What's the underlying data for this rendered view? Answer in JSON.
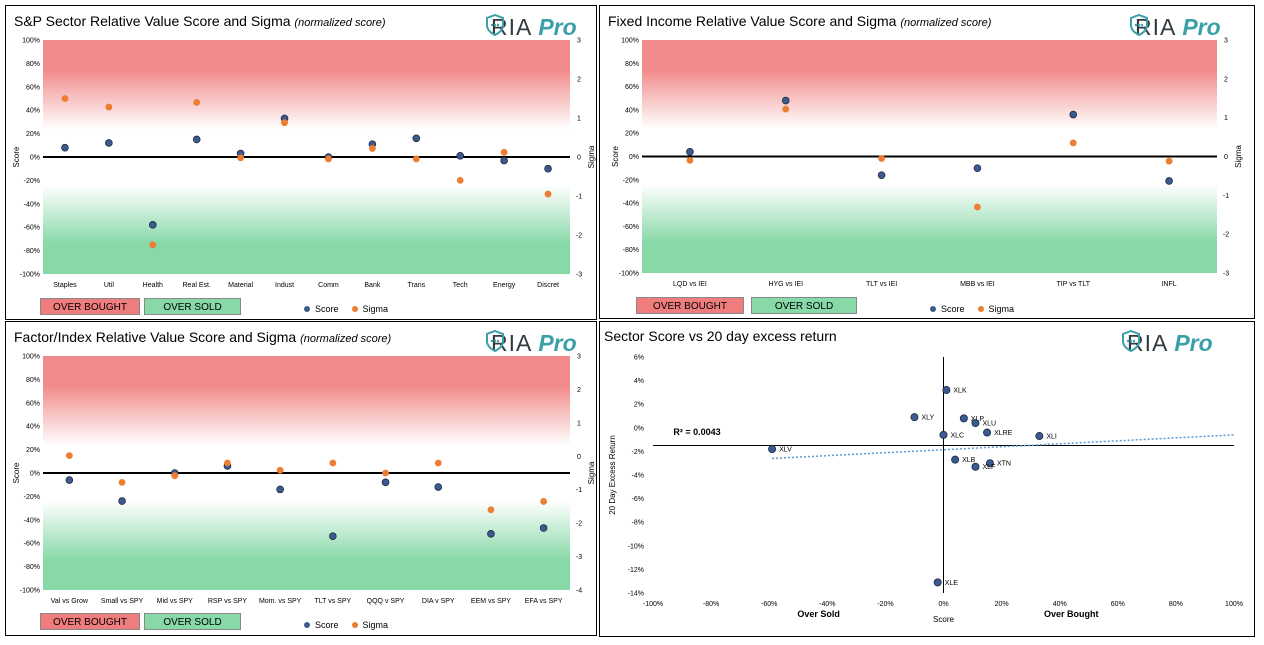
{
  "logo": {
    "ria": "RIA",
    "pro": "Pro"
  },
  "legend": {
    "over_bought": "OVER BOUGHT",
    "over_sold": "OVER SOLD",
    "score": "Score",
    "sigma": "Sigma"
  },
  "colors": {
    "score": "#3b5a8f",
    "sigma": "#ed7d31",
    "zone_red": "#f28b8b",
    "zone_green": "#88d9a8",
    "trend": "#5b9bd5"
  },
  "chart_data": [
    {
      "id": "sp",
      "type": "scatter",
      "title": "S&P Sector Relative Value Score and Sigma",
      "subtitle": "(normalized score)",
      "ylabel": "Score",
      "y2label": "Sigma",
      "ylim": [
        -100,
        100
      ],
      "y2lim": [
        -3,
        3
      ],
      "yticks": [
        "100%",
        "80%",
        "60%",
        "40%",
        "20%",
        "0%",
        "-20%",
        "-40%",
        "-60%",
        "-80%",
        "-100%"
      ],
      "y2ticks": [
        "3",
        "2",
        "1",
        "0",
        "-1",
        "-2",
        "-3"
      ],
      "categories": [
        "Staples",
        "Util",
        "Health",
        "Real Est.",
        "Material",
        "Indust",
        "Comm",
        "Bank",
        "Trans",
        "Tech",
        "Energy",
        "Discret"
      ],
      "series": [
        {
          "name": "Score",
          "values": [
            8,
            12,
            -58,
            15,
            3,
            33,
            0,
            11,
            16,
            1,
            -3,
            -10
          ]
        },
        {
          "name": "Sigma",
          "values": [
            1.5,
            1.28,
            -2.25,
            1.4,
            -0.02,
            0.88,
            -0.05,
            0.22,
            -0.05,
            -0.6,
            0.12,
            -0.95
          ]
        }
      ]
    },
    {
      "id": "fi",
      "type": "scatter",
      "title": "Fixed Income Relative Value Score and Sigma",
      "subtitle": "(normalized score)",
      "ylabel": "Score",
      "y2label": "Sigma",
      "ylim": [
        -100,
        100
      ],
      "y2lim": [
        -3,
        3
      ],
      "yticks": [
        "100%",
        "80%",
        "60%",
        "40%",
        "20%",
        "0%",
        "-20%",
        "-40%",
        "-60%",
        "-80%",
        "-100%"
      ],
      "y2ticks": [
        "3",
        "2",
        "1",
        "0",
        "-1",
        "-2",
        "-3"
      ],
      "categories": [
        "LQD vs IEI",
        "HYG vs IEI",
        "TLT vs IEI",
        "MBB vs IEI",
        "TIP vs TLT",
        "INFL"
      ],
      "series": [
        {
          "name": "Score",
          "values": [
            4,
            48,
            -16,
            -10,
            36,
            -21
          ]
        },
        {
          "name": "Sigma",
          "values": [
            -0.1,
            1.22,
            -0.05,
            -1.3,
            0.35,
            -0.12
          ]
        }
      ]
    },
    {
      "id": "fx",
      "type": "scatter",
      "title": "Factor/Index Relative Value Score and Sigma",
      "subtitle": "(normalized score)",
      "ylabel": "Score",
      "y2label": "Sigma",
      "ylim": [
        -100,
        100
      ],
      "y2lim": [
        -4,
        3
      ],
      "yticks": [
        "100%",
        "80%",
        "60%",
        "40%",
        "20%",
        "0%",
        "-20%",
        "-40%",
        "-60%",
        "-80%",
        "-100%"
      ],
      "y2ticks": [
        "3",
        "2",
        "1",
        "0",
        "-1",
        "-2",
        "-3",
        "-4"
      ],
      "categories": [
        "Val vs Grow",
        "Small vs SPY",
        "Mid vs SPY",
        "RSP vs SPY",
        "Mom. vs SPY",
        "TLT vs SPY",
        "QQQ v SPY",
        "DIA v SPY",
        "EEM vs SPY",
        "EFA vs SPY"
      ],
      "series": [
        {
          "name": "Score",
          "values": [
            -6,
            -24,
            0,
            6,
            -14,
            -54,
            -8,
            -12,
            -52,
            -47
          ]
        },
        {
          "name": "Sigma",
          "values": [
            0.02,
            -0.78,
            -0.58,
            -0.2,
            -0.42,
            -0.2,
            -0.5,
            -0.2,
            -1.6,
            -1.35
          ]
        }
      ]
    },
    {
      "id": "sc",
      "type": "scatter",
      "title": "Sector Score vs 20 day excess return",
      "xlabel": "Score",
      "ylabel": "20 Day Excess Return",
      "xlim": [
        -100,
        100
      ],
      "ylim": [
        -14,
        6
      ],
      "xticks": [
        "-100%",
        "-80%",
        "-60%",
        "-40%",
        "-20%",
        "0%",
        "20%",
        "40%",
        "60%",
        "80%",
        "100%"
      ],
      "yticks": [
        "6%",
        "4%",
        "2%",
        "0%",
        "-2%",
        "-4%",
        "-6%",
        "-8%",
        "-10%",
        "-12%",
        "-14%"
      ],
      "over_sold_label": "Over Sold",
      "over_bought_label": "Over Bought",
      "r2_label": "R² = 0.0043",
      "points": [
        {
          "label": "XLV",
          "x": -59,
          "y": -1.8
        },
        {
          "label": "XLK",
          "x": 1,
          "y": 3.2
        },
        {
          "label": "XLY",
          "x": -10,
          "y": 0.9
        },
        {
          "label": "XLP",
          "x": 7,
          "y": 0.8
        },
        {
          "label": "XLU",
          "x": 11,
          "y": 0.4
        },
        {
          "label": "XLRE",
          "x": 15,
          "y": -0.4
        },
        {
          "label": "XLC",
          "x": 0,
          "y": -0.6
        },
        {
          "label": "XLI",
          "x": 33,
          "y": -0.7
        },
        {
          "label": "XLB",
          "x": 4,
          "y": -2.7
        },
        {
          "label": "XTN",
          "x": 16,
          "y": -3.0
        },
        {
          "label": "XLF",
          "x": 11,
          "y": -3.3
        },
        {
          "label": "XLE",
          "x": -2,
          "y": -13.1
        }
      ],
      "trend": {
        "y_at_xmin": -2.6,
        "y_at_xmax": -0.6
      }
    }
  ]
}
